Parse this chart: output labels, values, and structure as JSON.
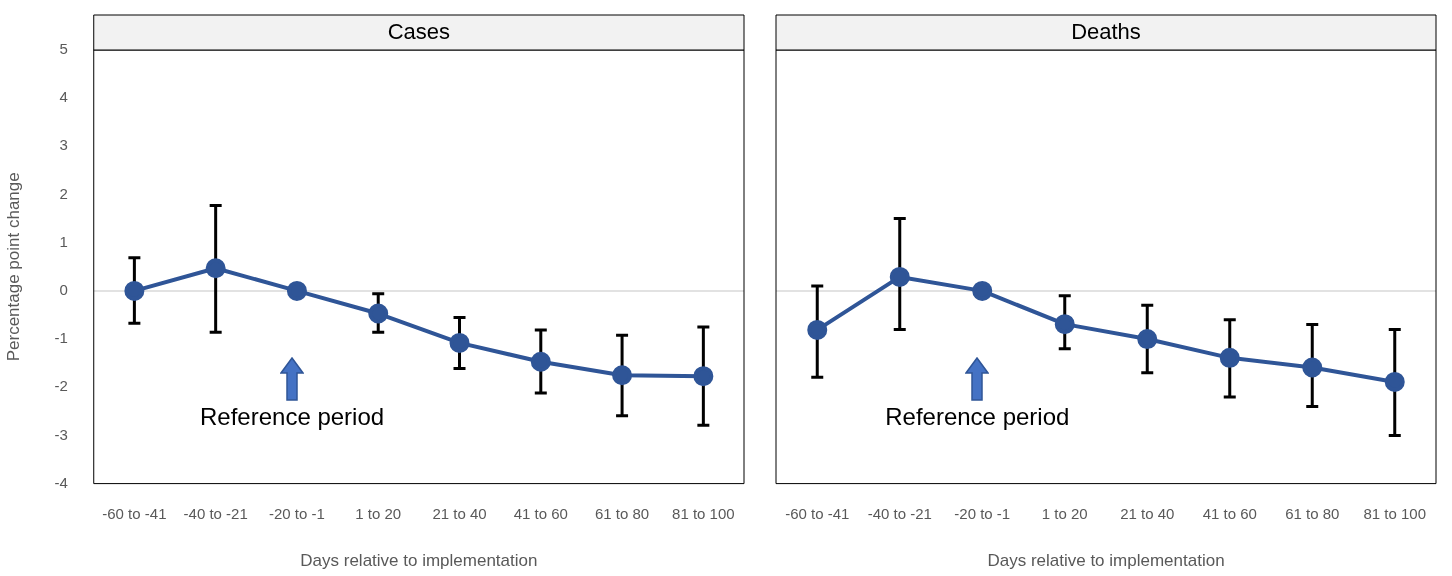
{
  "chart_data": [
    {
      "type": "line",
      "title": "Cases",
      "xlabel": "Days relative to implementation",
      "ylabel": "Percentage point change",
      "categories": [
        "-60 to -41",
        "-40 to -21",
        "-20 to -1",
        "1 to 20",
        "21 to 40",
        "41 to 60",
        "61 to 80",
        "81 to 100"
      ],
      "series": [
        {
          "color": "#2f5597",
          "values": [
            0,
            0.47,
            0,
            -0.47,
            -1.08,
            -1.47,
            -1.75,
            -1.77
          ],
          "errors": [
            [
              -0.67,
              0.69
            ],
            [
              -0.86,
              1.77
            ],
            null,
            [
              -0.86,
              -0.06
            ],
            [
              -1.61,
              -0.55
            ],
            [
              -2.12,
              -0.81
            ],
            [
              -2.59,
              -0.92
            ],
            [
              -2.79,
              -0.75
            ]
          ]
        }
      ],
      "ylim": [
        -4,
        5
      ],
      "yticks": [
        -4,
        -3,
        -2,
        -1,
        0,
        1,
        2,
        3,
        4,
        5
      ],
      "marker": "circle",
      "line_style": "solid",
      "ref_lines": [
        {
          "axis": "y",
          "value": 0,
          "color": "#d9d9d9"
        }
      ],
      "annotations": [
        "Reference period"
      ]
    },
    {
      "type": "line",
      "title": "Deaths",
      "xlabel": "Days relative to implementation",
      "categories": [
        "-60 to -41",
        "-40 to -21",
        "-20 to -1",
        "1 to 20",
        "21 to 40",
        "41 to 60",
        "61 to 80",
        "81 to 100"
      ],
      "series": [
        {
          "color": "#2f5597",
          "values": [
            -0.81,
            0.29,
            0,
            -0.69,
            -1.0,
            -1.39,
            -1.59,
            -1.89
          ],
          "errors": [
            [
              -1.79,
              0.1
            ],
            [
              -0.8,
              1.5
            ],
            null,
            [
              -1.2,
              -0.1
            ],
            [
              -1.7,
              -0.3
            ],
            [
              -2.2,
              -0.6
            ],
            [
              -2.4,
              -0.7
            ],
            [
              -3.0,
              -0.8
            ]
          ]
        }
      ],
      "ylim": [
        -4,
        5
      ],
      "yticks": [
        -4,
        -3,
        -2,
        -1,
        0,
        1,
        2,
        3,
        4,
        5
      ],
      "tick_labels": "x",
      "marker": "circle",
      "line_style": "solid",
      "ref_lines": [
        {
          "axis": "y",
          "value": 0,
          "color": "#d9d9d9"
        }
      ],
      "annotations": [
        "Reference period"
      ]
    }
  ]
}
